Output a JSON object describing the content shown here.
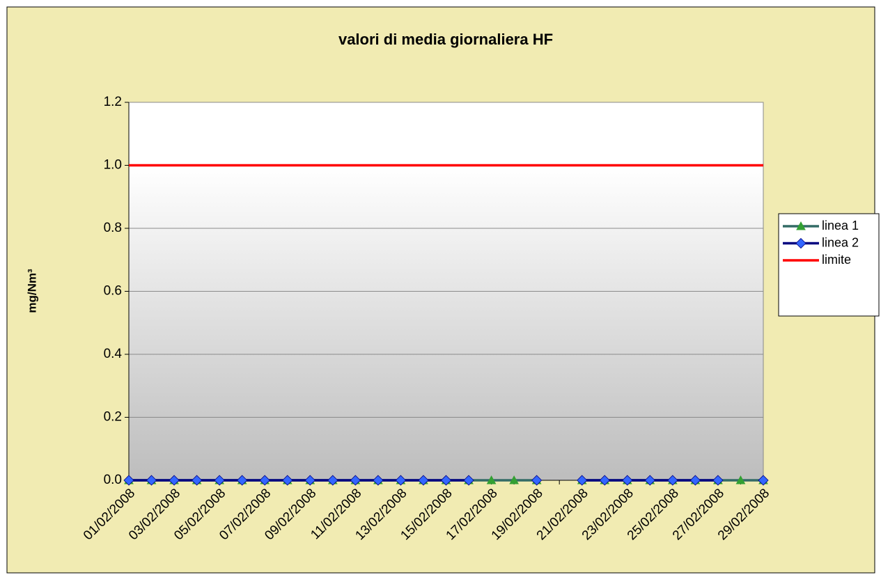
{
  "chart_data": {
    "type": "line",
    "title": "valori di media giornaliera  HF",
    "y_label": "mg/Nm³",
    "categories": [
      "01/02/2008",
      null,
      "03/02/2008",
      null,
      "05/02/2008",
      null,
      "07/02/2008",
      null,
      "09/02/2008",
      null,
      "11/02/2008",
      null,
      "13/02/2008",
      null,
      "15/02/2008",
      null,
      "17/02/2008",
      null,
      "19/02/2008",
      null,
      "21/02/2008",
      null,
      "23/02/2008",
      null,
      "25/02/2008",
      null,
      "27/02/2008",
      null,
      "29/02/2008"
    ],
    "series": [
      {
        "name": "linea 1",
        "color": "#336b66",
        "marker": "triangle",
        "marker_color": "#33a033",
        "values": [
          0,
          0,
          0,
          0,
          0,
          0,
          0,
          0,
          0,
          0,
          0,
          0,
          0,
          0,
          0,
          0,
          0,
          0,
          0,
          null,
          0,
          0,
          0,
          0,
          0,
          0,
          0,
          0,
          0
        ]
      },
      {
        "name": "linea 2",
        "color": "#000080",
        "marker": "diamond",
        "marker_color": "#3366ff",
        "values": [
          0,
          0,
          0,
          0,
          0,
          0,
          0,
          0,
          0,
          0,
          0,
          0,
          0,
          0,
          0,
          0,
          null,
          null,
          0,
          null,
          0,
          0,
          0,
          0,
          0,
          0,
          0,
          null,
          0
        ]
      },
      {
        "name": "limite",
        "color": "#ff0000",
        "marker": null,
        "marker_color": null,
        "values": [
          1,
          1,
          1,
          1,
          1,
          1,
          1,
          1,
          1,
          1,
          1,
          1,
          1,
          1,
          1,
          1,
          1,
          1,
          1,
          1,
          1,
          1,
          1,
          1,
          1,
          1,
          1,
          1,
          1
        ]
      }
    ],
    "ylim": [
      0,
      1.2
    ],
    "yticks": [
      {
        "value": 0,
        "label": "0.0"
      },
      0.2,
      0.4,
      0.6,
      0.8,
      {
        "value": 1,
        "label": "1.0"
      },
      1.2
    ],
    "grid": true,
    "legend": "right"
  }
}
